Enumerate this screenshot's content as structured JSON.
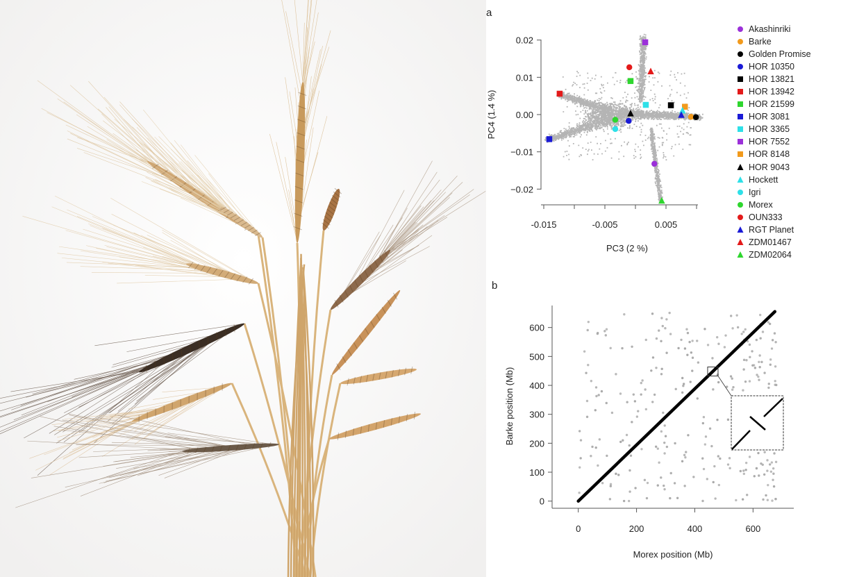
{
  "figure": {
    "panel_a_label": "a",
    "panel_b_label": "b",
    "photo_description_alt": "barley spikes"
  },
  "chart_data": [
    {
      "type": "scatter",
      "panel": "a",
      "xlabel": "PC3 (2 %)",
      "ylabel": "PC4 (1.4 %)",
      "xlim": [
        -0.0155,
        0.0125
      ],
      "ylim": [
        -0.0245,
        0.0225
      ],
      "xticks": [
        -0.015,
        -0.01,
        -0.005,
        0,
        0.005,
        0.01
      ],
      "xtick_labels": [
        "-0.015",
        "",
        "-0.005",
        "",
        "0.005",
        ""
      ],
      "yticks": [
        0.02,
        0.01,
        0.0,
        -0.01,
        -0.02
      ],
      "ytick_labels": [
        "0.02",
        "0.01",
        "0.00",
        "−0.01",
        "−0.02"
      ],
      "background_cloud": {
        "color": "#b4b4b4",
        "description": "individual accessions"
      },
      "legend_position": "right",
      "series": [
        {
          "name": "Akashinriki",
          "color": "#9b30d9",
          "shape": "circle",
          "x": 0.0031,
          "y": -0.0132
        },
        {
          "name": "Barke",
          "color": "#f29a1c",
          "shape": "circle",
          "x": 0.0091,
          "y": -0.0006
        },
        {
          "name": "Golden Promise",
          "color": "#000000",
          "shape": "circle",
          "x": 0.0099,
          "y": -0.0007
        },
        {
          "name": "HOR 10350",
          "color": "#1a1ad6",
          "shape": "circle",
          "x": -0.0011,
          "y": -0.0017
        },
        {
          "name": "HOR 13821",
          "color": "#000000",
          "shape": "square",
          "x": 0.0058,
          "y": 0.0025
        },
        {
          "name": "HOR 13942",
          "color": "#e31a1a",
          "shape": "square",
          "x": -0.0124,
          "y": 0.0056
        },
        {
          "name": "HOR 21599",
          "color": "#2ed62e",
          "shape": "square",
          "x": -0.0008,
          "y": 0.009
        },
        {
          "name": "HOR 3081",
          "color": "#1a1ad6",
          "shape": "square",
          "x": -0.0141,
          "y": -0.0066
        },
        {
          "name": "HOR 3365",
          "color": "#2ee0e8",
          "shape": "square",
          "x": 0.0017,
          "y": 0.0026
        },
        {
          "name": "HOR 7552",
          "color": "#9b30d9",
          "shape": "square",
          "x": 0.0016,
          "y": 0.0194
        },
        {
          "name": "HOR 8148",
          "color": "#f29a1c",
          "shape": "square",
          "x": 0.0081,
          "y": 0.0021
        },
        {
          "name": "HOR 9043",
          "color": "#000000",
          "shape": "triangle",
          "x": -0.0008,
          "y": 0.0003
        },
        {
          "name": "Hockett",
          "color": "#2ee0e8",
          "shape": "triangle",
          "x": 0.0077,
          "y": 0.0011
        },
        {
          "name": "Igri",
          "color": "#2ee0e8",
          "shape": "circle",
          "x": -0.0033,
          "y": -0.0039
        },
        {
          "name": "Morex",
          "color": "#2ed62e",
          "shape": "circle",
          "x": -0.0033,
          "y": -0.0014
        },
        {
          "name": "OUN333",
          "color": "#e31a1a",
          "shape": "circle",
          "x": -0.001,
          "y": 0.0127
        },
        {
          "name": "RGT Planet",
          "color": "#1a1ad6",
          "shape": "triangle",
          "x": 0.0075,
          "y": -0.0001
        },
        {
          "name": "ZDM01467",
          "color": "#e31a1a",
          "shape": "triangle",
          "x": 0.0025,
          "y": 0.0116
        },
        {
          "name": "ZDM02064",
          "color": "#2ed62e",
          "shape": "triangle",
          "x": 0.0043,
          "y": -0.0231
        }
      ]
    },
    {
      "type": "scatter",
      "panel": "b",
      "xlabel": "Morex position (Mb)",
      "ylabel": "Barke position (Mb)",
      "xlim": [
        -90,
        740
      ],
      "ylim": [
        -25,
        675
      ],
      "xticks": [
        0,
        200,
        400,
        600
      ],
      "xtick_labels": [
        "0",
        "200",
        "400",
        "600"
      ],
      "yticks": [
        0,
        100,
        200,
        300,
        400,
        500,
        600
      ],
      "ytick_labels": [
        "0",
        "100",
        "200",
        "300",
        "400",
        "500",
        "600"
      ],
      "collinear_line": {
        "from": [
          0,
          0
        ],
        "to": [
          675,
          655
        ],
        "color": "#000000"
      },
      "off_diagonal_points": {
        "count": 320,
        "color": "#a8a8a8",
        "x_range": [
          0,
          680
        ],
        "y_range": [
          0,
          655
        ]
      },
      "inset": {
        "zoom_center_mb": [
          462,
          448
        ],
        "content": "inversion"
      }
    }
  ]
}
